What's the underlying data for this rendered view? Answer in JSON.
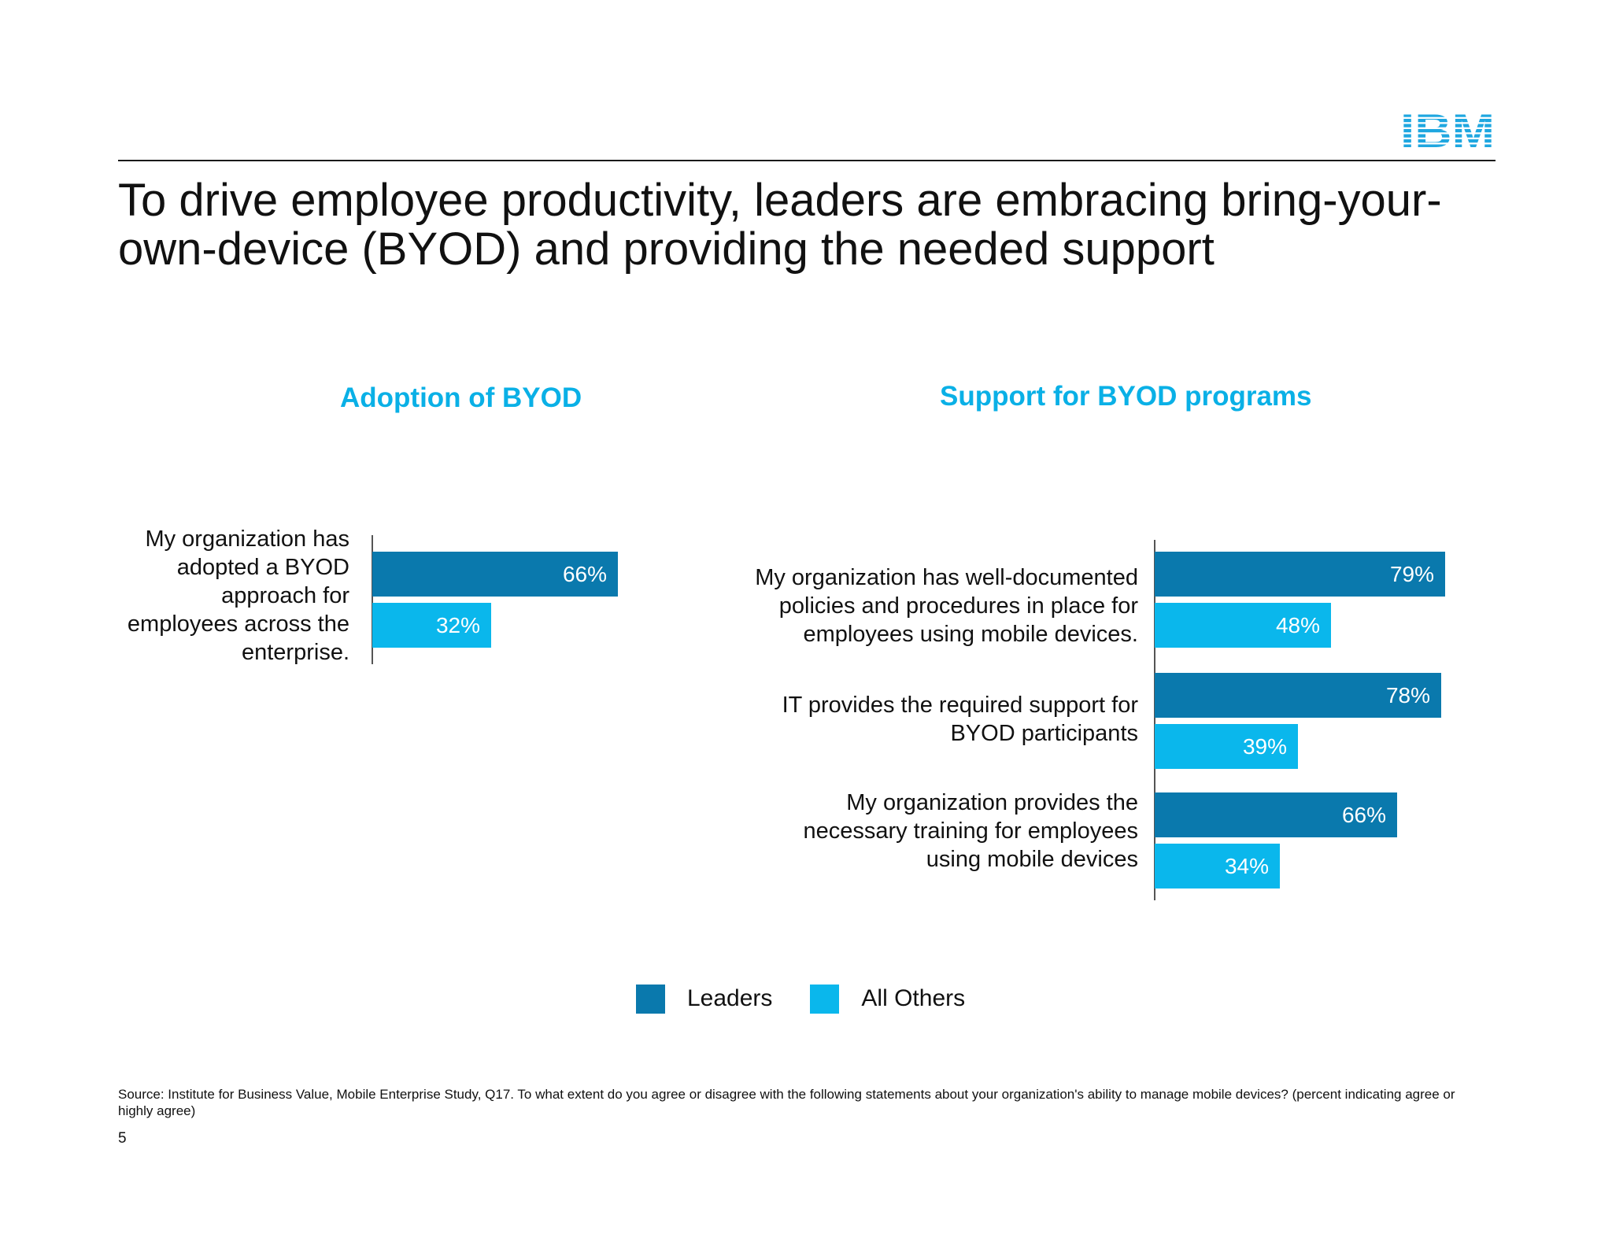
{
  "logo": {
    "text": "IBM",
    "color": "#1fa7e0"
  },
  "title": "To drive employee productivity, leaders are embracing bring-your-own-device (BYOD) and providing the needed support",
  "colors": {
    "leaders": "#0a79ad",
    "all_others": "#0ab7ec",
    "accent_title": "#0ab0e6"
  },
  "chart_data": [
    {
      "type": "bar",
      "orientation": "horizontal",
      "title": "Adoption of BYOD",
      "categories": [
        "My organization has adopted a BYOD approach for employees across the enterprise."
      ],
      "series": [
        {
          "name": "Leaders",
          "values": [
            66
          ],
          "labels": [
            "66%"
          ]
        },
        {
          "name": "All Others",
          "values": [
            32
          ],
          "labels": [
            "32%"
          ]
        }
      ],
      "xlim": [
        0,
        100
      ],
      "unit": "%"
    },
    {
      "type": "bar",
      "orientation": "horizontal",
      "title": "Support for BYOD programs",
      "categories": [
        "My organization has well-documented policies and procedures in place for employees using mobile devices.",
        "IT provides the required support for BYOD participants",
        "My organization provides the necessary training for employees using mobile devices"
      ],
      "series": [
        {
          "name": "Leaders",
          "values": [
            79,
            78,
            66
          ],
          "labels": [
            "79%",
            "78%",
            "66%"
          ]
        },
        {
          "name": "All Others",
          "values": [
            48,
            39,
            34
          ],
          "labels": [
            "48%",
            "39%",
            "34%"
          ]
        }
      ],
      "xlim": [
        0,
        100
      ],
      "unit": "%"
    }
  ],
  "legend": [
    {
      "label": "Leaders",
      "color": "#0a79ad"
    },
    {
      "label": "All Others",
      "color": "#0ab7ec"
    }
  ],
  "source": "Source:  Institute for Business Value, Mobile Enterprise Study, Q17. To what extent do you agree or disagree with the following statements about your organization's ability to manage mobile devices? (percent indicating agree or highly agree)",
  "page_number": "5"
}
